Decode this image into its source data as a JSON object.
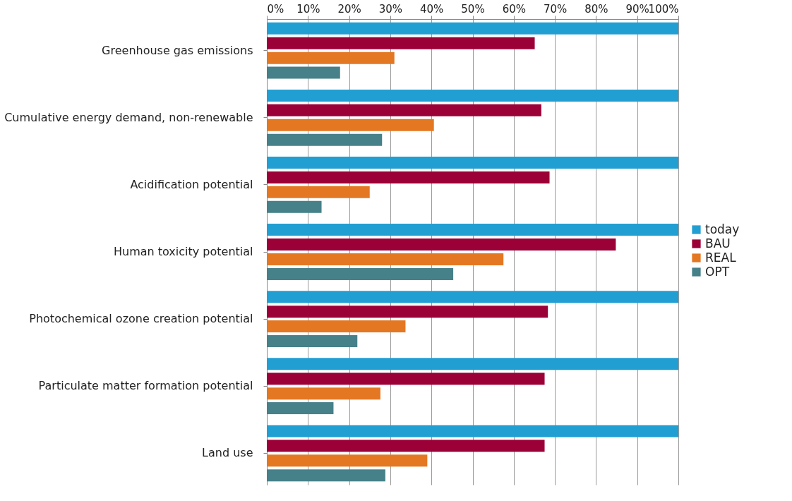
{
  "chart_data": {
    "type": "bar",
    "orientation": "horizontal",
    "categories": [
      "Greenhouse gas emissions",
      "Cumulative energy demand, non-renewable",
      "Acidification potential",
      "Human toxicity potential",
      "Photochemical ozone creation potential",
      "Particulate matter formation potential",
      "Land use"
    ],
    "series": [
      {
        "name": "today",
        "color": "#229fd2",
        "values": [
          100,
          100,
          100,
          100,
          100,
          100,
          100
        ]
      },
      {
        "name": "BAU",
        "color": "#9b0036",
        "values": [
          65.1,
          66.7,
          68.7,
          84.8,
          68.3,
          67.5,
          67.5
        ]
      },
      {
        "name": "REAL",
        "color": "#e47722",
        "values": [
          31.0,
          40.6,
          25.0,
          57.5,
          33.7,
          27.6,
          39.0
        ]
      },
      {
        "name": "OPT",
        "color": "#468089",
        "values": [
          17.8,
          28.0,
          13.3,
          45.3,
          22.0,
          16.2,
          28.8
        ]
      }
    ],
    "xlim": [
      0,
      100
    ],
    "xticks": [
      {
        "value": 0,
        "label": "0%"
      },
      {
        "value": 10,
        "label": "10%"
      },
      {
        "value": 20,
        "label": "20%"
      },
      {
        "value": 30,
        "label": "30%"
      },
      {
        "value": 40,
        "label": "40%"
      },
      {
        "value": 50,
        "label": "50%"
      },
      {
        "value": 60,
        "label": "60%"
      },
      {
        "value": 70,
        "label": "70%"
      },
      {
        "value": 80,
        "label": "80%"
      },
      {
        "value": 90,
        "label": "90%"
      },
      {
        "value": 100,
        "label": "100%"
      }
    ],
    "grid": "x",
    "legend": "right"
  }
}
